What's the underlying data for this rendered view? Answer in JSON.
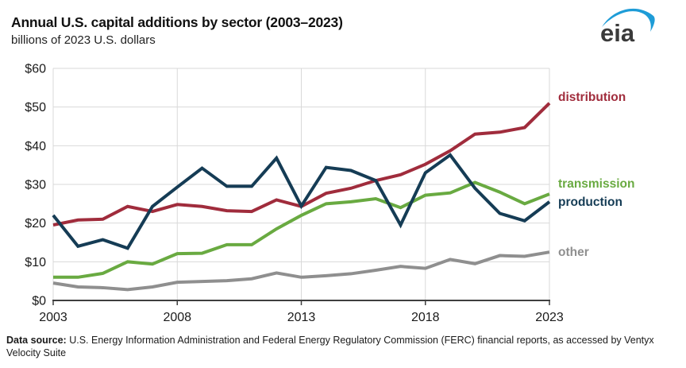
{
  "header": {
    "logo_text": "eia",
    "logo_blue": "#1E9CD7",
    "logo_text_color": "#3A3A3A"
  },
  "chart_data": {
    "type": "line",
    "title": "Annual U.S. capital additions by sector (2003–2023)",
    "subtitle": "billions of 2023 U.S. dollars",
    "xlabel": "",
    "ylabel": "billions of 2023 U.S. dollars",
    "x": [
      2003,
      2004,
      2005,
      2006,
      2007,
      2008,
      2009,
      2010,
      2011,
      2012,
      2013,
      2014,
      2015,
      2016,
      2017,
      2018,
      2019,
      2020,
      2021,
      2022,
      2023
    ],
    "series": [
      {
        "name": "distribution",
        "color": "#A02C3C",
        "label_dy": -3,
        "values": [
          19.5,
          20.8,
          21,
          24.3,
          23,
          24.8,
          24.3,
          23.2,
          23,
          26,
          24.3,
          27.7,
          29,
          31,
          32.5,
          35.2,
          38.7,
          43,
          43.5,
          44.7,
          51
        ]
      },
      {
        "name": "transmission",
        "color": "#69AA41",
        "label_dy": -8,
        "values": [
          6,
          6,
          7,
          10,
          9.4,
          12.1,
          12.2,
          14.4,
          14.4,
          18.5,
          22,
          25,
          25.5,
          26.3,
          24,
          27.2,
          27.8,
          30.5,
          28,
          25,
          27.5
        ]
      },
      {
        "name": "production",
        "color": "#153C55",
        "label_dy": 5,
        "values": [
          22,
          14,
          15.7,
          13.5,
          24.3,
          29.3,
          34.2,
          29.5,
          29.5,
          36.8,
          24.4,
          34.4,
          33.6,
          31,
          19.5,
          33,
          37.6,
          29,
          22.5,
          20.6,
          25.5
        ]
      },
      {
        "name": "other",
        "color": "#8F8F8F",
        "label_dy": 5,
        "values": [
          4.5,
          3.5,
          3.3,
          2.8,
          3.5,
          4.7,
          4.9,
          5.1,
          5.6,
          7.1,
          6,
          6.4,
          6.9,
          7.8,
          8.8,
          8.3,
          10.6,
          9.5,
          11.6,
          11.4,
          12.5
        ]
      }
    ],
    "ylim": [
      0,
      60
    ],
    "yticks": [
      0,
      10,
      20,
      30,
      40,
      50,
      60
    ],
    "ytick_prefix": "$",
    "xticks": [
      2003,
      2008,
      2013,
      2018,
      2023
    ],
    "grid": true,
    "legend_position": "right-of-lines",
    "colors": {
      "grid": "#D9D9D9",
      "axis": "#3F3F3F",
      "tick_text": "#1A1A1A"
    }
  },
  "footer": {
    "source_label": "Data source:",
    "source_text": " U.S. Energy Information Administration and Federal Energy Regulatory Commission (FERC) financial reports, as accessed by Ventyx Velocity Suite"
  }
}
